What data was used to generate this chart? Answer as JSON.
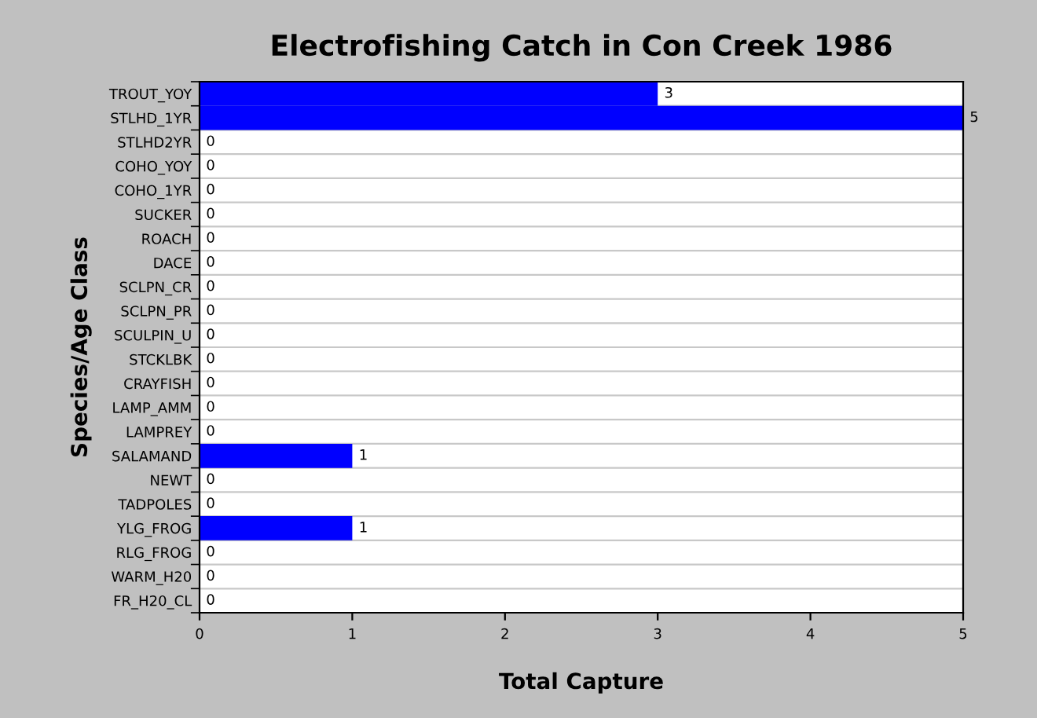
{
  "chart_data": {
    "type": "bar",
    "orientation": "horizontal",
    "title": "Electrofishing Catch in Con Creek 1986",
    "xlabel": "Total Capture",
    "ylabel": "Species/Age Class",
    "categories": [
      "TROUT_YOY",
      "STLHD_1YR",
      "STLHD2YR",
      "COHO_YOY",
      "COHO_1YR",
      "SUCKER",
      "ROACH",
      "DACE",
      "SCLPN_CR",
      "SCLPN_PR",
      "SCULPIN_U",
      "STCKLBK",
      "CRAYFISH",
      "LAMP_AMM",
      "LAMPREY",
      "SALAMAND",
      "NEWT",
      "TADPOLES",
      "YLG_FROG",
      "RLG_FROG",
      "WARM_H20",
      "FR_H20_CL"
    ],
    "values": [
      3,
      5,
      0,
      0,
      0,
      0,
      0,
      0,
      0,
      0,
      0,
      0,
      0,
      0,
      0,
      1,
      0,
      0,
      1,
      0,
      0,
      0
    ],
    "color": "#0000ff",
    "xlim": [
      0,
      5
    ],
    "xticks": [
      0,
      1,
      2,
      3,
      4,
      5
    ],
    "grid": "y",
    "data_labels": true
  }
}
